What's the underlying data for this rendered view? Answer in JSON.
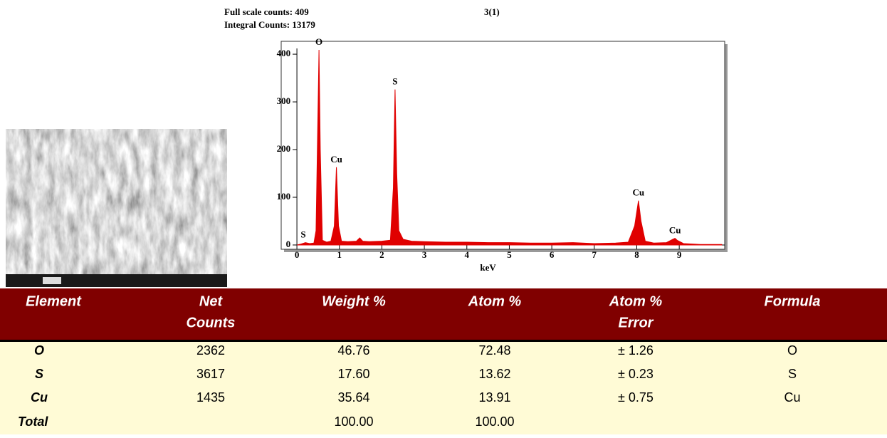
{
  "header": {
    "full_scale": "Full scale counts: 409",
    "integral": "Integral Counts: 13179",
    "spectrum_id": "3(1)"
  },
  "chart_data": {
    "type": "area",
    "xlabel": "keV",
    "color": "#e00000",
    "x": [
      0,
      0.1,
      0.2,
      0.3,
      0.4,
      0.45,
      0.5,
      0.52,
      0.55,
      0.6,
      0.7,
      0.8,
      0.88,
      0.93,
      0.98,
      1.05,
      1.2,
      1.4,
      1.48,
      1.55,
      1.7,
      2.0,
      2.2,
      2.27,
      2.31,
      2.35,
      2.4,
      2.5,
      2.7,
      3.0,
      3.5,
      4.0,
      4.5,
      5.0,
      5.5,
      6.0,
      6.5,
      7.0,
      7.5,
      7.8,
      7.95,
      8.04,
      8.1,
      8.2,
      8.4,
      8.7,
      8.85,
      8.9,
      8.95,
      9.1,
      9.5,
      10.0
    ],
    "values": [
      0,
      2,
      5,
      3,
      4,
      30,
      300,
      409,
      200,
      10,
      6,
      8,
      40,
      163,
      40,
      8,
      7,
      8,
      15,
      8,
      7,
      8,
      10,
      120,
      326,
      150,
      30,
      12,
      8,
      7,
      6,
      6,
      5,
      5,
      4,
      4,
      5,
      3,
      4,
      6,
      40,
      93,
      50,
      8,
      4,
      5,
      12,
      14,
      10,
      3,
      1,
      1
    ],
    "xlim": [
      -0.37,
      10.07
    ],
    "ylim": [
      -9,
      427
    ],
    "xticks": [
      0,
      1,
      2,
      3,
      4,
      5,
      6,
      7,
      8,
      9
    ],
    "yticks": [
      0,
      100,
      200,
      300,
      400
    ],
    "annotations": [
      {
        "label": "S",
        "x": 0.15,
        "y": 5
      },
      {
        "label": "O",
        "x": 0.52,
        "y": 409
      },
      {
        "label": "Cu",
        "x": 0.93,
        "y": 163
      },
      {
        "label": "S",
        "x": 2.31,
        "y": 326
      },
      {
        "label": "Cu",
        "x": 8.04,
        "y": 93
      },
      {
        "label": "Cu",
        "x": 8.9,
        "y": 14
      }
    ]
  },
  "table": {
    "columns": [
      [
        "Element"
      ],
      [
        "Net",
        "Counts"
      ],
      [
        "Weight %"
      ],
      [
        "Atom %"
      ],
      [
        "Atom %",
        "Error"
      ],
      [
        "Formula"
      ]
    ],
    "rows": [
      [
        "O",
        "2362",
        "46.76",
        "72.48",
        "± 1.26",
        "O"
      ],
      [
        "S",
        "3617",
        "17.60",
        "13.62",
        "± 0.23",
        "S"
      ],
      [
        "Cu",
        "1435",
        "35.64",
        "13.91",
        "± 0.75",
        "Cu"
      ],
      [
        "Total",
        null,
        "100.00",
        "100.00",
        null,
        null
      ]
    ]
  }
}
